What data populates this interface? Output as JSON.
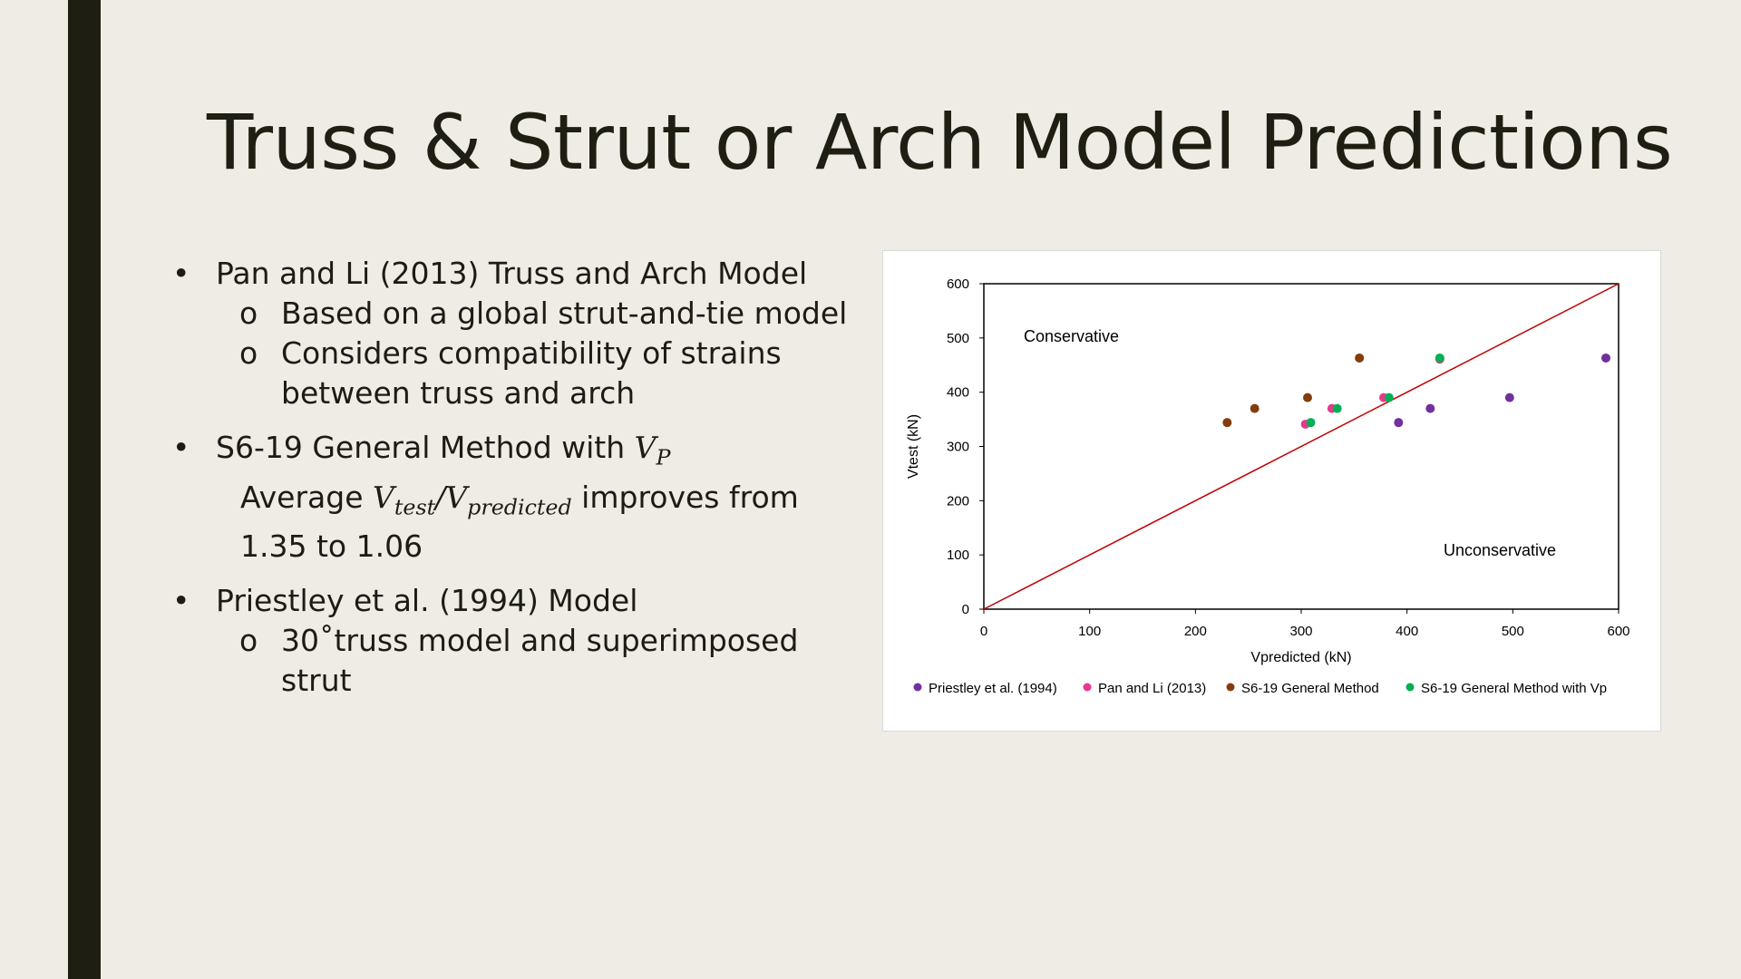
{
  "slide": {
    "title": "Truss & Strut or Arch Model Predictions",
    "bullets": {
      "b1": "Pan and Li (2013) Truss and Arch Model",
      "b1_sub1": "Based on a global strut-and-tie model",
      "b1_sub2_l1": "Considers compatibility of strains",
      "b1_sub2_l2": "between truss and arch",
      "b2_text": "S6-19 General Method with ",
      "b2_var": "V",
      "b2_var_sub": "P",
      "b2_avg": "Average ",
      "b2_vtest": "V",
      "b2_vtest_sub": "test",
      "b2_slash": "/",
      "b2_vpred": "V",
      "b2_vpred_sub": "predicted",
      "b2_improves": " improves from",
      "b2_range": "1.35 to 1.06",
      "b3": "Priestley et al. (1994) Model",
      "b3_sub1": "30˚truss model and superimposed strut",
      "bullet_glyph": "•",
      "sub_glyph": "o"
    }
  },
  "chart_data": {
    "type": "scatter",
    "title": "",
    "xlabel": "Vpredicted (kN)",
    "ylabel": "Vtest (kN)",
    "xlim": [
      0,
      600
    ],
    "ylim": [
      0,
      600
    ],
    "xticks": [
      0,
      100,
      200,
      300,
      400,
      500,
      600
    ],
    "yticks": [
      0,
      100,
      200,
      300,
      400,
      500,
      600
    ],
    "grid": false,
    "legend_position": "bottom",
    "annotations": [
      "Conservative",
      "Unconservative"
    ],
    "reference_line": {
      "from": [
        0,
        0
      ],
      "to": [
        600,
        600
      ],
      "color": "#C00000"
    },
    "series": [
      {
        "name": "Priestley et al. (1994)",
        "color": "#7030A0",
        "points": [
          [
            588,
            463
          ],
          [
            497,
            390
          ],
          [
            422,
            370
          ],
          [
            392,
            344
          ]
        ]
      },
      {
        "name": "Pan and Li (2013)",
        "color": "#E8388E",
        "points": [
          [
            431,
            461
          ],
          [
            378,
            390
          ],
          [
            329,
            370
          ],
          [
            304,
            341
          ]
        ]
      },
      {
        "name": "S6-19 General Method",
        "color": "#843C0C",
        "points": [
          [
            355,
            463
          ],
          [
            306,
            390
          ],
          [
            256,
            370
          ],
          [
            230,
            344
          ]
        ]
      },
      {
        "name": "S6-19 General Method with Vp",
        "color": "#00B050",
        "points": [
          [
            431,
            463
          ],
          [
            383,
            390
          ],
          [
            334,
            370
          ],
          [
            309,
            344
          ]
        ]
      }
    ]
  }
}
